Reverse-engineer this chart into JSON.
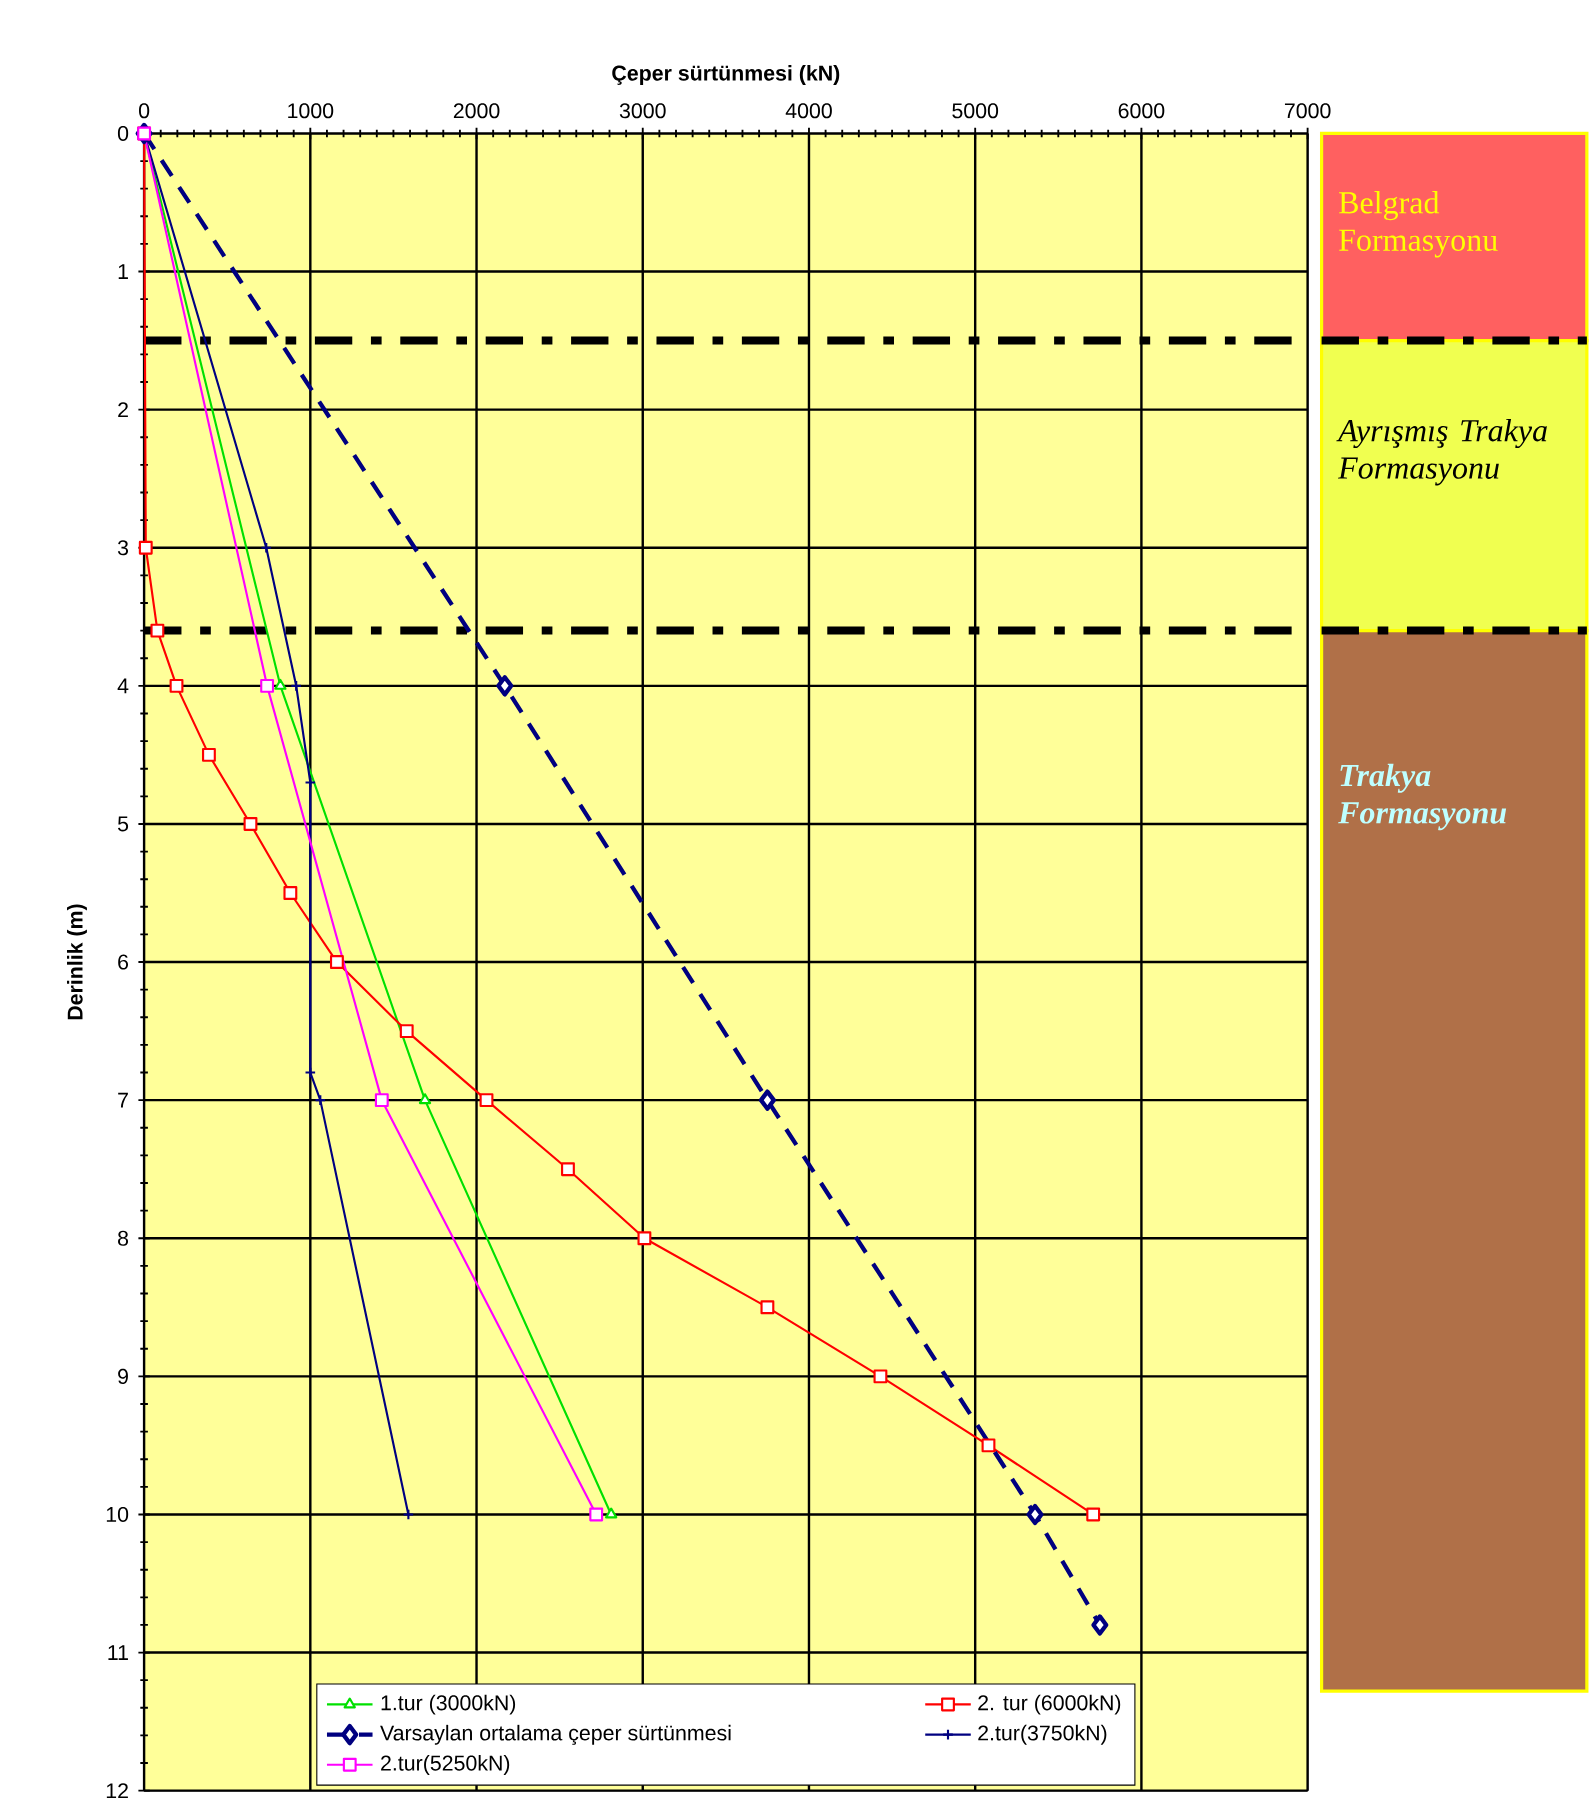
{
  "chart_data": {
    "type": "line",
    "xlabel": "Çeper sürtünmesi (kN)",
    "ylabel": "Derinlik (m)",
    "xlim": [
      0,
      7000
    ],
    "xticks": [
      0,
      1000,
      2000,
      3000,
      4000,
      5000,
      6000,
      7000
    ],
    "ylim": [
      12,
      0
    ],
    "yticks": [
      0,
      1,
      2,
      3,
      4,
      5,
      6,
      7,
      8,
      9,
      10,
      11,
      12
    ],
    "grid": true,
    "legend": "bottom",
    "series": [
      {
        "name": "1.tur (3000kN)",
        "color": "#00e000",
        "marker": "triangle",
        "x": [
          0,
          820,
          1690,
          2810
        ],
        "values": [
          0,
          4,
          7,
          10
        ]
      },
      {
        "name": "2. tur (6000kN)",
        "color": "#ff0000",
        "marker": "square",
        "x": [
          0,
          10,
          80,
          195,
          390,
          640,
          880,
          1160,
          1580,
          2060,
          2550,
          3010,
          3750,
          4430,
          5080,
          5710
        ],
        "values": [
          0,
          3,
          3.6,
          4,
          4.5,
          5,
          5.5,
          6,
          6.5,
          7,
          7.5,
          8,
          8.5,
          9,
          9.5,
          10
        ]
      },
      {
        "name": "Varsaylan ortalama çeper sürtünmesi",
        "color": "#000080",
        "marker": "diamond",
        "line_style": "dashed",
        "x": [
          0,
          2170,
          3750,
          5360,
          5750
        ],
        "values": [
          0,
          4,
          7,
          10,
          10.8
        ]
      },
      {
        "name": "2.tur(3750kN)",
        "color": "#000080",
        "marker": "cross",
        "x": [
          0,
          735,
          915,
          1000,
          1000,
          1060,
          1590
        ],
        "values": [
          0,
          3,
          4,
          4.7,
          6.8,
          7,
          10
        ]
      },
      {
        "name": "2.tur(5250kN)",
        "color": "#ff00ff",
        "marker": "square",
        "x": [
          0,
          740,
          1430,
          2720
        ],
        "values": [
          0,
          4,
          7,
          10
        ]
      }
    ],
    "ref_lines": [
      {
        "axis": "y",
        "value": 1.5,
        "color": "#000000",
        "line_style": "dashdot"
      },
      {
        "axis": "y",
        "value": 3.6,
        "color": "#000000",
        "line_style": "dashdot"
      }
    ],
    "annotations": [
      "Belgrad Formasyonu",
      "Ayrışmış Trakya Formasyonu",
      "Trakya Formasyonu"
    ]
  }
}
